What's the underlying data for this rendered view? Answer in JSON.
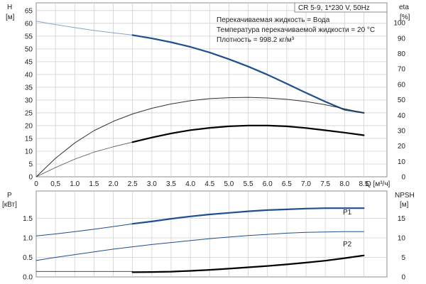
{
  "chart_data": [
    {
      "type": "line",
      "panel": "performance",
      "x_ticks": [
        "0",
        "0,5",
        "1.0",
        "1.5",
        "2.0",
        "2.5",
        "3.0",
        "3.5",
        "4.0",
        "4.5",
        "5.0",
        "5.5",
        "6.0",
        "6.5",
        "7.0",
        "7.5",
        "8.0",
        "8.5"
      ],
      "xlabel": "Q [м³/ч]",
      "xlim": [
        0,
        9.1
      ],
      "ylabel_left": "H",
      "ylabel_left_unit": "[м]",
      "ylim_left": [
        0,
        68
      ],
      "y_ticks_left": [
        "0",
        "5",
        "10",
        "15",
        "20",
        "25",
        "30",
        "35",
        "40",
        "45",
        "50",
        "55",
        "60",
        "65"
      ],
      "ylabel_right": "eta",
      "ylabel_right_unit": "[%]",
      "ylim_right": [
        0,
        113
      ],
      "y_ticks_right": [
        "0",
        "10",
        "20",
        "30",
        "40",
        "50",
        "60",
        "70",
        "80",
        "90",
        "100"
      ],
      "grid": true,
      "info_box": {
        "title": "CR 5-9, 1*230 V, 50Hz",
        "lines": [
          "Перекачиваемая жидкость = Вода",
          "Температура перекачиваемой жидкости = 20 °C",
          "Плотность = 998.2 кг/м³"
        ]
      },
      "series": [
        {
          "axis": "left",
          "color": "#8aa3c2",
          "width": 1,
          "x": [
            0,
            0.5,
            1,
            1.5,
            2,
            2.5
          ],
          "y": [
            60.8,
            59.5,
            58.3,
            57.2,
            56.3,
            55.4
          ]
        },
        {
          "axis": "left",
          "color": "#1f4f8c",
          "width": 2.2,
          "x": [
            2.5,
            3,
            3.5,
            4,
            4.5,
            5,
            5.5,
            6,
            6.5,
            7,
            7.5,
            8,
            8.5
          ],
          "y": [
            55.4,
            54.1,
            52.6,
            50.8,
            48.6,
            46,
            43.1,
            39.9,
            36.4,
            32.8,
            29.4,
            26.2,
            25
          ]
        },
        {
          "axis": "right",
          "color": "#333333",
          "width": 1,
          "x": [
            0,
            0.5,
            1,
            1.5,
            2,
            2.5,
            3,
            3.5,
            4,
            4.5,
            5,
            5.5,
            6,
            6.5,
            7,
            7.5,
            8,
            8.5
          ],
          "y": [
            0,
            12,
            22,
            30,
            36,
            40.8,
            44.5,
            47.3,
            49.4,
            50.8,
            51.4,
            51.6,
            51.2,
            50.3,
            48.9,
            46.8,
            44.2,
            41.5
          ]
        },
        {
          "axis": "right",
          "color": "#555555",
          "width": 0.8,
          "x": [
            0,
            0.5,
            1,
            1.5,
            2,
            2.5
          ],
          "y": [
            0,
            6,
            11.5,
            16,
            19.5,
            22.5
          ]
        },
        {
          "axis": "right",
          "color": "#000000",
          "width": 2.2,
          "x": [
            2.5,
            3,
            3.5,
            4,
            4.5,
            5,
            5.5,
            6,
            6.5,
            7,
            7.5,
            8,
            8.5
          ],
          "y": [
            22.5,
            25.5,
            28.2,
            30.3,
            31.8,
            32.8,
            33.3,
            33.3,
            32.8,
            31.7,
            30.2,
            28.7,
            27
          ]
        }
      ]
    },
    {
      "type": "line",
      "panel": "power-npsh",
      "xlim": [
        0,
        9.1
      ],
      "ylabel_left": "P",
      "ylabel_left_unit": "[кВт]",
      "ylim_left": [
        0,
        2.2
      ],
      "y_ticks_left": [
        "0.0",
        "0.5",
        "1.0",
        "1.5"
      ],
      "ylabel_right": "NPSH",
      "ylabel_right_unit": "[м]",
      "ylim_right": [
        0,
        22
      ],
      "y_ticks_right": [
        "0",
        "5",
        "10",
        "15"
      ],
      "grid": true,
      "series": [
        {
          "name": "P1",
          "axis": "left",
          "color": "#1f4f8c",
          "width": 1,
          "x": [
            0,
            0.5,
            1,
            1.5,
            2,
            2.5
          ],
          "y": [
            1.05,
            1.1,
            1.16,
            1.22,
            1.29,
            1.36
          ]
        },
        {
          "name": "P1",
          "axis": "left",
          "color": "#1f4f8c",
          "width": 2.2,
          "x": [
            2.5,
            3,
            3.5,
            4,
            4.5,
            5,
            5.5,
            6,
            6.5,
            7,
            7.5,
            8,
            8.5
          ],
          "y": [
            1.36,
            1.42,
            1.49,
            1.55,
            1.6,
            1.64,
            1.68,
            1.71,
            1.73,
            1.75,
            1.76,
            1.76,
            1.76
          ]
        },
        {
          "name": "P2",
          "axis": "left",
          "color": "#1f4f8c",
          "width": 1,
          "x": [
            0,
            0.5,
            1,
            1.5,
            2,
            2.5,
            3,
            3.5,
            4,
            4.5,
            5,
            5.5,
            6,
            6.5,
            7,
            7.5,
            8,
            8.5
          ],
          "y": [
            0.42,
            0.5,
            0.57,
            0.64,
            0.71,
            0.77,
            0.83,
            0.88,
            0.93,
            0.98,
            1.02,
            1.06,
            1.09,
            1.12,
            1.14,
            1.15,
            1.16,
            1.16
          ]
        },
        {
          "axis": "right",
          "color": "#333333",
          "width": 0.8,
          "x": [
            0,
            2.5
          ],
          "y": [
            1.4,
            1.4
          ]
        },
        {
          "axis": "right",
          "color": "#000000",
          "width": 2.2,
          "x": [
            2.5,
            3,
            3.5,
            4,
            4.5,
            5,
            5.5,
            6,
            6.5,
            7,
            7.5,
            8,
            8.5
          ],
          "y": [
            1.2,
            1.25,
            1.35,
            1.55,
            1.8,
            2.1,
            2.45,
            2.8,
            3.2,
            3.65,
            4.15,
            4.8,
            5.5
          ]
        }
      ]
    }
  ]
}
